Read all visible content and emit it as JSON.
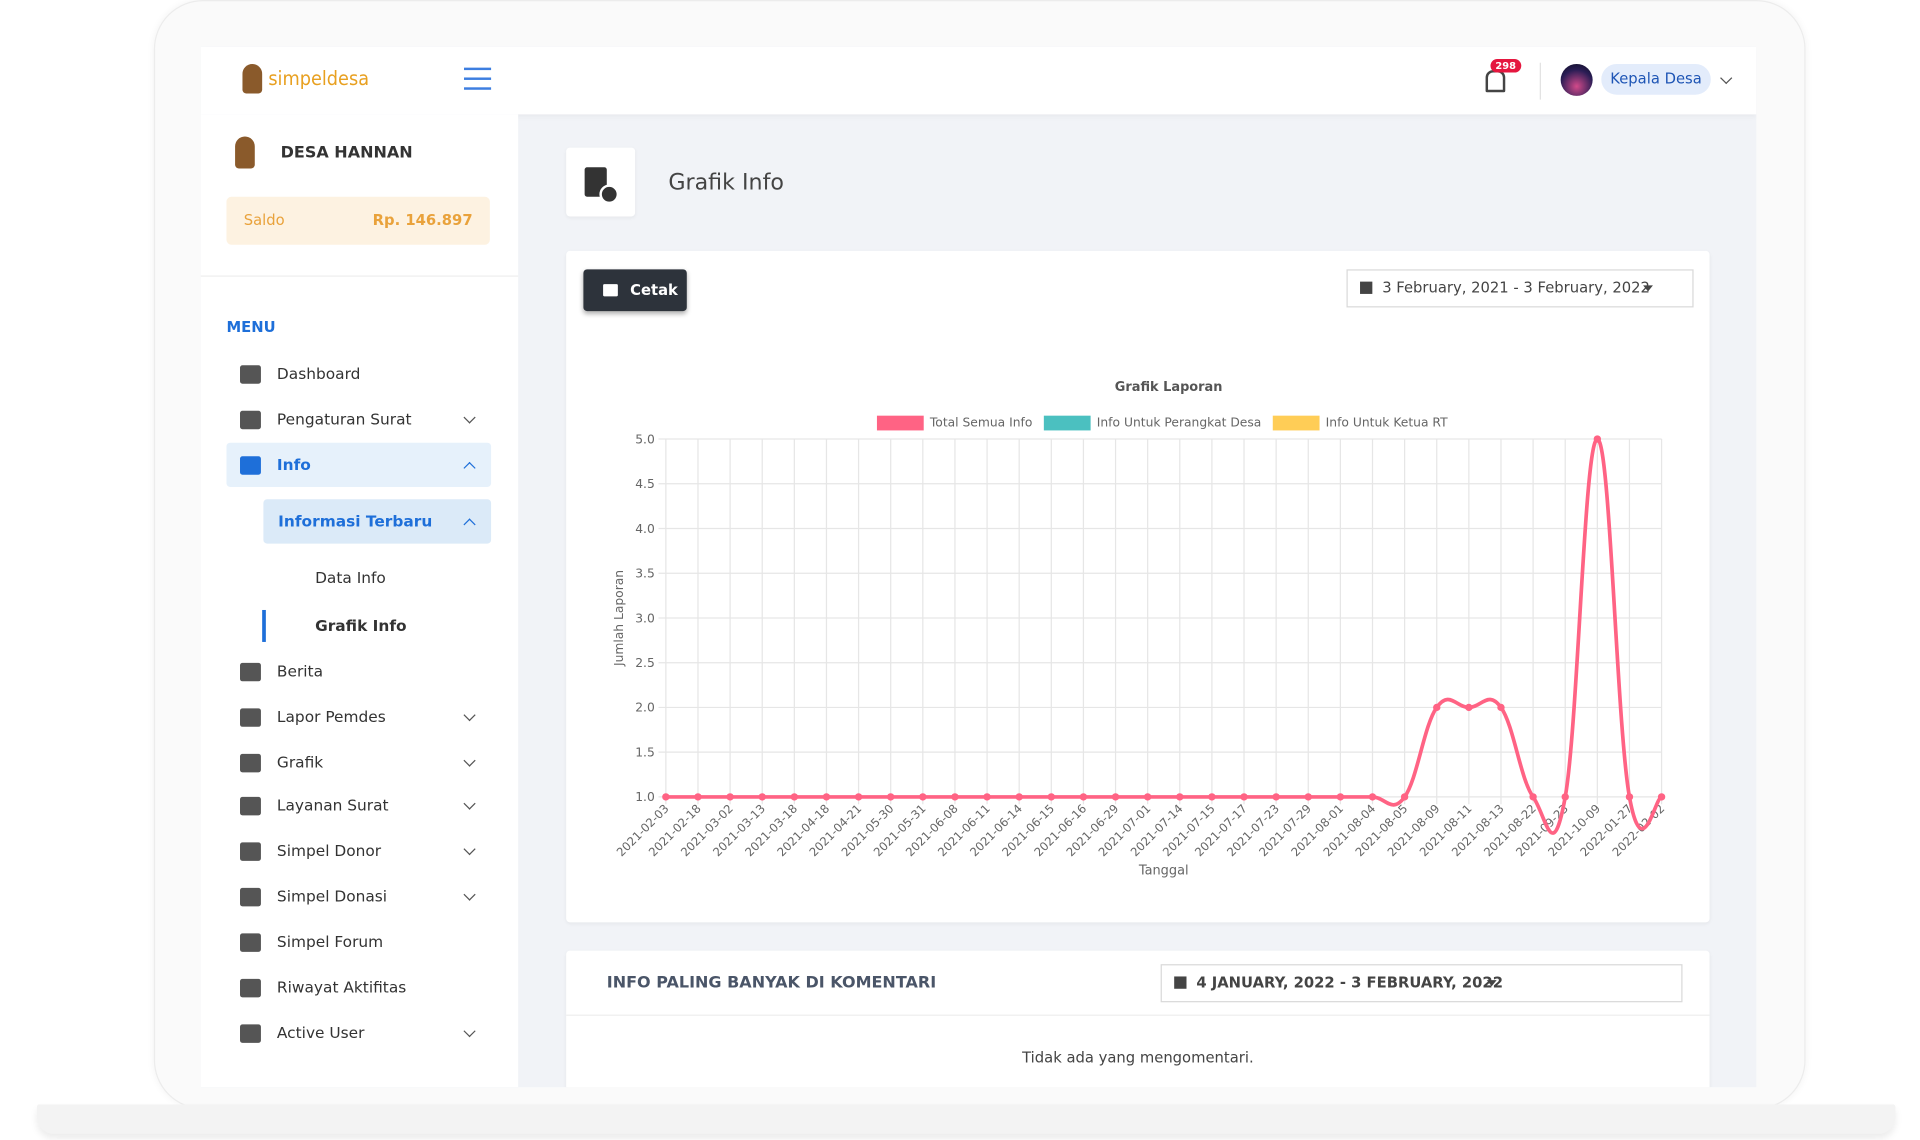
{
  "header": {
    "brand": "simpeldesa",
    "notifications": "298",
    "user": "Kepala Desa"
  },
  "sidebar": {
    "village": "DESA HANNAN",
    "balance_label": "Saldo",
    "balance": "Rp. 146.897",
    "menu_title": "MENU",
    "items": [
      "Dashboard",
      "Pengaturan Surat",
      "Info",
      "Informasi Terbaru",
      "Data Info",
      "Grafik Info",
      "Berita",
      "Lapor Pemdes",
      "Grafik",
      "Layanan Surat",
      "Simpel Donor",
      "Simpel Donasi",
      "Simpel Forum",
      "Riwayat Aktifitas",
      "Active User"
    ]
  },
  "page": {
    "title": "Grafik Info",
    "print_button": "Cetak",
    "date_range": "3 February, 2021 - 3 February, 2022"
  },
  "chart_data": {
    "type": "line",
    "title": "Grafik Laporan",
    "y_label": "Jumlah Laporan",
    "x_label": "Tanggal",
    "categories": [
      "2021-02-03",
      "2021-02-18",
      "2021-03-02",
      "2021-03-13",
      "2021-03-18",
      "2021-04-18",
      "2021-04-21",
      "2021-05-30",
      "2021-05-31",
      "2021-06-08",
      "2021-06-11",
      "2021-06-14",
      "2021-06-15",
      "2021-06-16",
      "2021-06-29",
      "2021-07-01",
      "2021-07-14",
      "2021-07-15",
      "2021-07-17",
      "2021-07-23",
      "2021-07-29",
      "2021-08-01",
      "2021-08-04",
      "2021-08-05",
      "2021-08-09",
      "2021-08-11",
      "2021-08-13",
      "2021-08-22",
      "2021-09-23",
      "2021-10-09",
      "2022-01-27",
      "2022-02-02"
    ],
    "series": [
      {
        "name": "Total Semua Info",
        "color": "#ff6384",
        "values": [
          1,
          1,
          1,
          1,
          1,
          1,
          1,
          1,
          1,
          1,
          1,
          1,
          1,
          1,
          1,
          1,
          1,
          1,
          1,
          1,
          1,
          1,
          1,
          1,
          2,
          2,
          2,
          1,
          1,
          5,
          1,
          1
        ]
      },
      {
        "name": "Info Untuk Perangkat Desa",
        "color": "#4bc0c0",
        "values": [
          null,
          null,
          null,
          null,
          null,
          null,
          null,
          null,
          null,
          null,
          null,
          null,
          null,
          null,
          null,
          null,
          null,
          null,
          null,
          null,
          null,
          null,
          null,
          null,
          null,
          null,
          null,
          null,
          null,
          null,
          null,
          null
        ]
      },
      {
        "name": "Info Untuk Ketua RT",
        "color": "#ffcd56",
        "values": [
          null,
          null,
          null,
          null,
          null,
          null,
          null,
          null,
          null,
          null,
          null,
          null,
          null,
          null,
          null,
          null,
          null,
          null,
          null,
          null,
          null,
          null,
          null,
          null,
          null,
          null,
          null,
          null,
          null,
          null,
          null,
          null
        ]
      }
    ],
    "ylim": [
      1,
      5
    ],
    "yticks": [
      {
        "value": 1,
        "label": "1.0"
      },
      {
        "value": 1.5,
        "label": "1.5"
      },
      {
        "value": 2,
        "label": "2.0"
      },
      {
        "value": 2.5,
        "label": "2.5"
      },
      {
        "value": 3,
        "label": "3.0"
      },
      {
        "value": 3.5,
        "label": "3.5"
      },
      {
        "value": 4,
        "label": "4.0"
      },
      {
        "value": 4.5,
        "label": "4.5"
      },
      {
        "value": 5,
        "label": "5.0"
      }
    ],
    "grid": true,
    "legend": "top"
  },
  "comments": {
    "title": "INFO PALING BANYAK DI KOMENTARI",
    "date_range": "4 JANUARY, 2022 - 3 FEBRUARY, 2022",
    "empty": "Tidak ada yang mengomentari."
  }
}
